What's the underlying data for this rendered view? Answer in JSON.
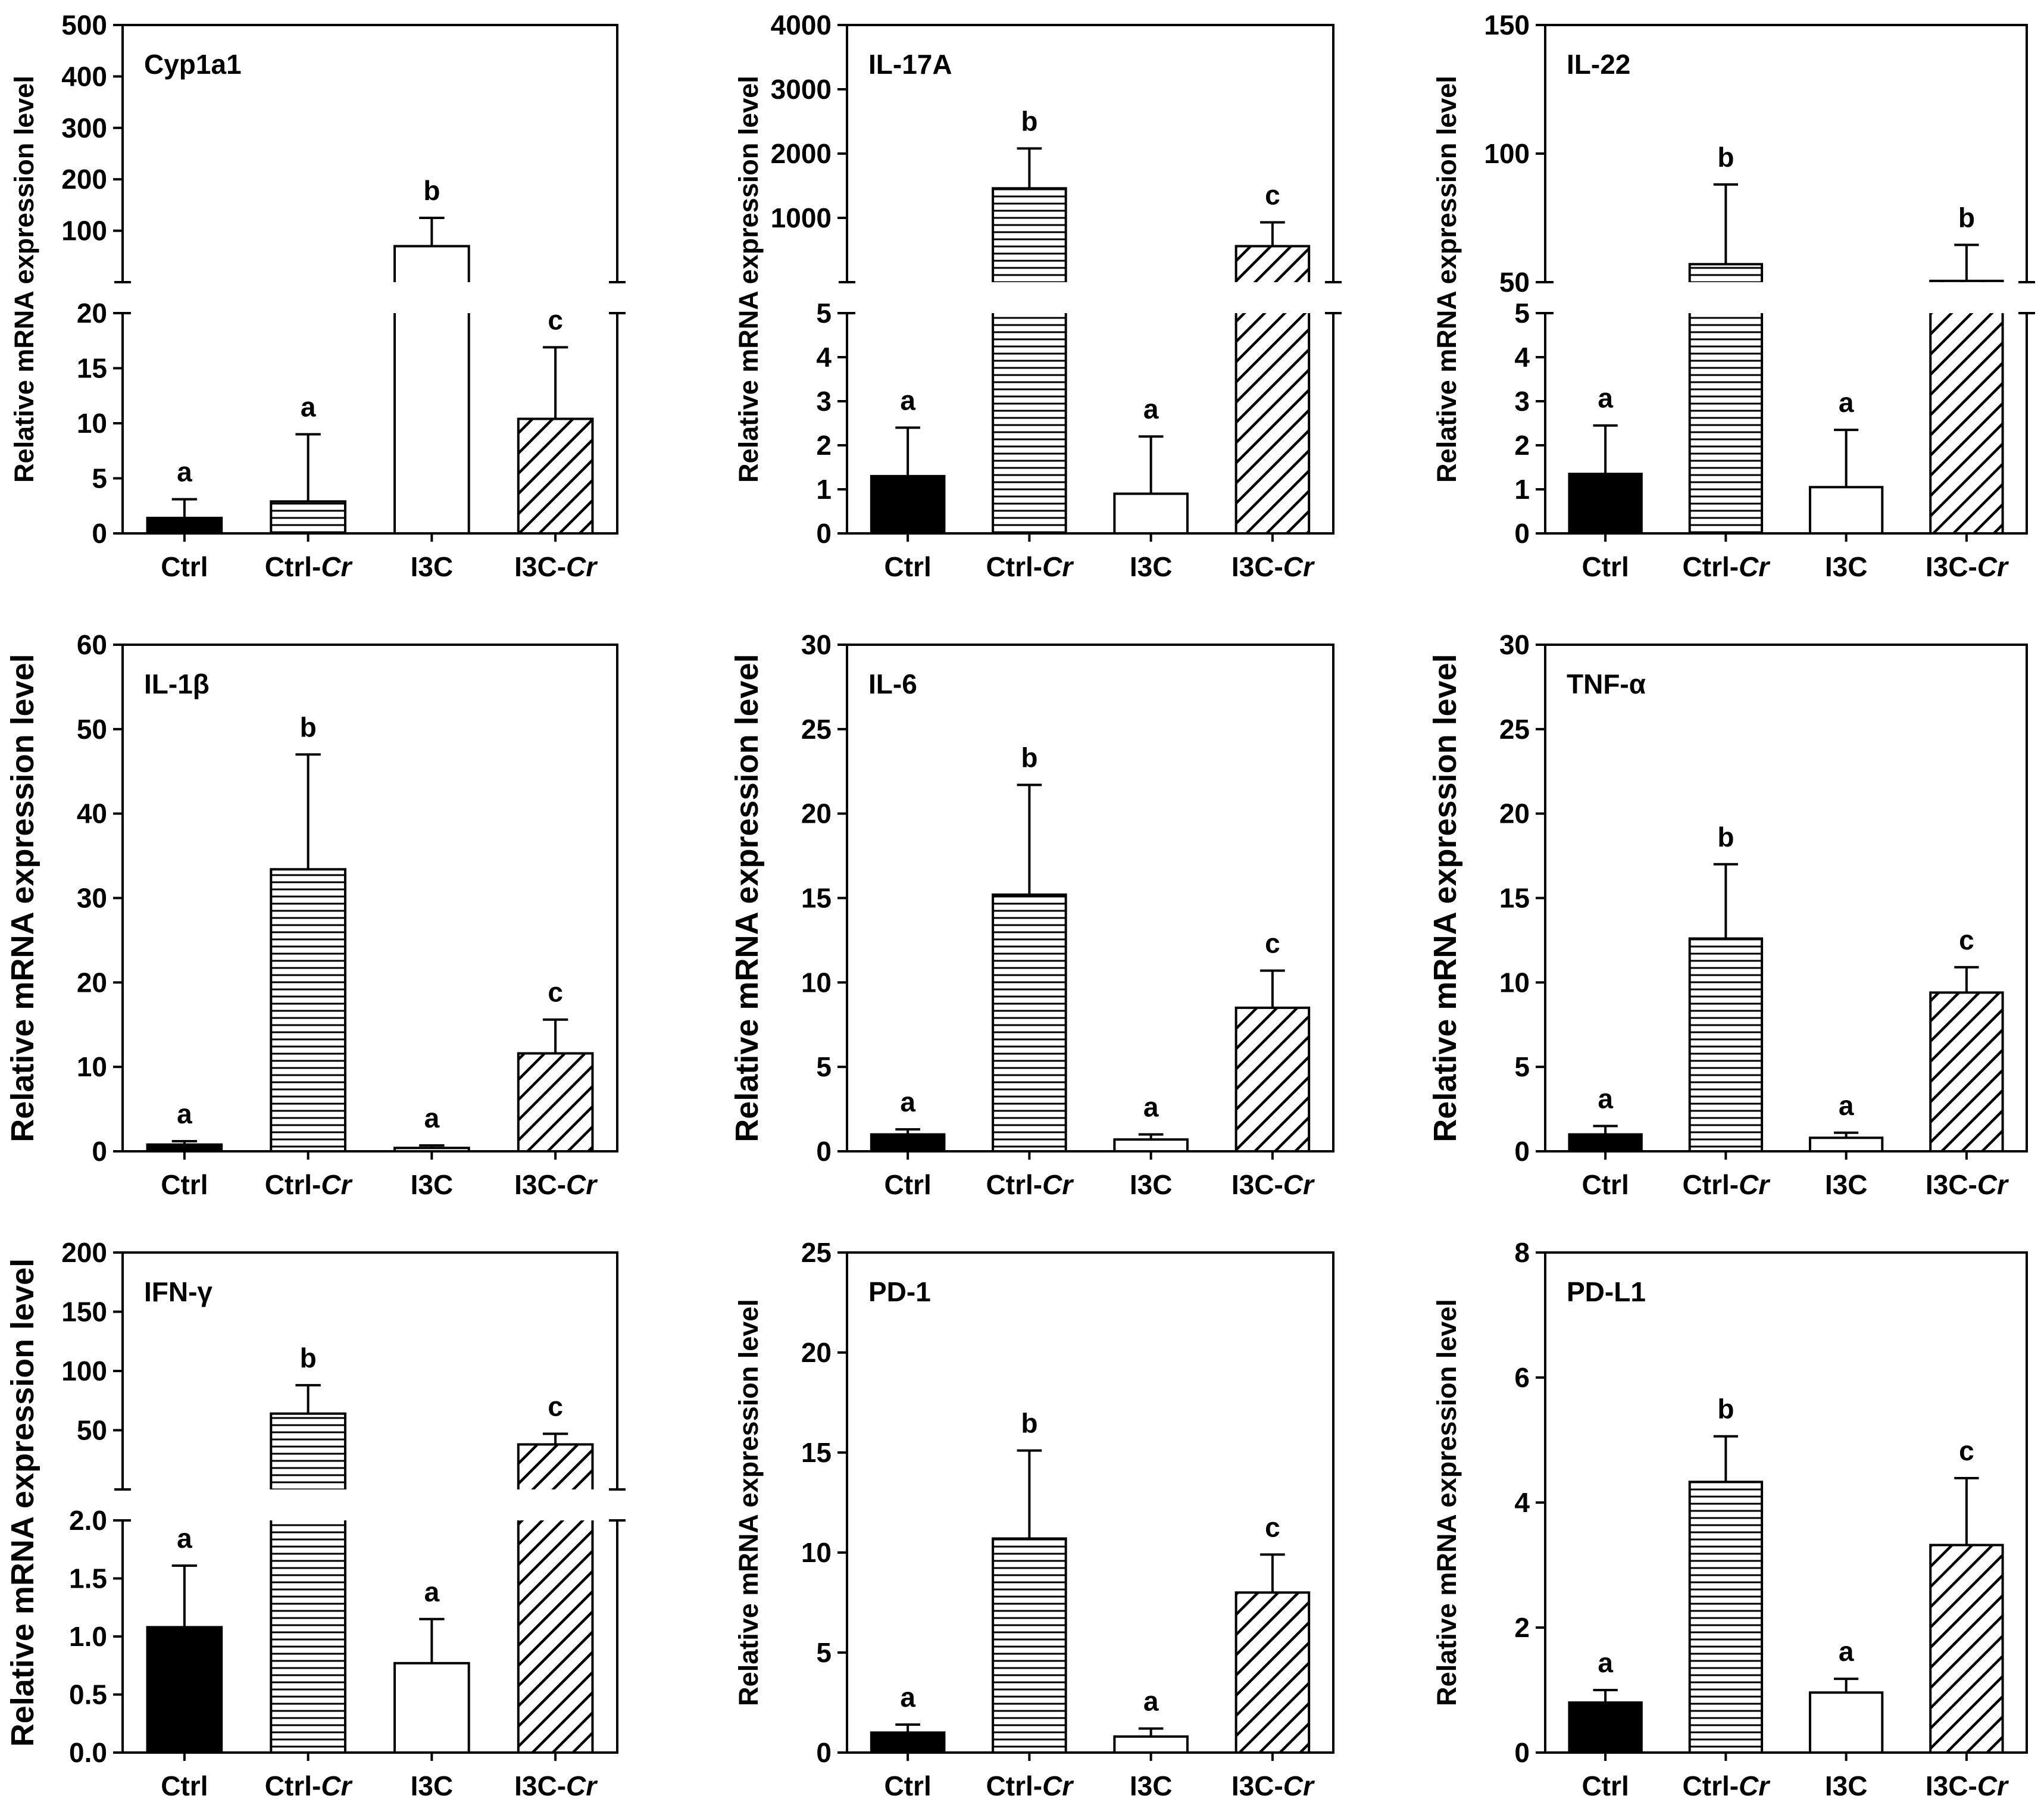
{
  "figure": {
    "ylabel": "Relative mRNA expression level",
    "categories": [
      "Ctrl",
      "Ctrl-",
      "I3C",
      "I3C-"
    ],
    "category_suffix": [
      "",
      "Cr",
      "",
      "Cr"
    ],
    "fills": [
      "solid",
      "horizontal-lines",
      "empty",
      "diagonal-hatch"
    ],
    "colors": {
      "bar_fill": "#000000",
      "stroke": "#000000",
      "background": "#ffffff"
    }
  },
  "chart_data": [
    {
      "type": "bar",
      "title": "Cyp1a1",
      "xlabel": "",
      "ylabel": "Relative mRNA expression level",
      "categories": [
        "Ctrl",
        "Ctrl-Cr",
        "I3C",
        "I3C-Cr"
      ],
      "broken_axis": true,
      "lower": {
        "ylim": [
          0,
          20
        ],
        "ticks": [
          "0",
          "5",
          "10",
          "15",
          "20"
        ]
      },
      "upper": {
        "ylim": [
          0,
          500
        ],
        "ticks": [
          "100",
          "200",
          "300",
          "400",
          "500"
        ]
      },
      "values": [
        1.4,
        2.9,
        70,
        10.4
      ],
      "errors": [
        1.7,
        6.1,
        55,
        6.5
      ],
      "letters": [
        "a",
        "a",
        "b",
        "c"
      ]
    },
    {
      "type": "bar",
      "title": "IL-17A",
      "xlabel": "",
      "ylabel": "Relative mRNA expression level",
      "categories": [
        "Ctrl",
        "Ctrl-Cr",
        "I3C",
        "I3C-Cr"
      ],
      "broken_axis": true,
      "lower": {
        "ylim": [
          0,
          5
        ],
        "ticks": [
          "0",
          "1",
          "2",
          "3",
          "4",
          "5"
        ]
      },
      "upper": {
        "ylim": [
          0,
          4000
        ],
        "ticks": [
          "1000",
          "2000",
          "3000",
          "4000"
        ]
      },
      "values": [
        1.3,
        1460,
        0.9,
        560
      ],
      "errors": [
        1.1,
        620,
        1.3,
        370
      ],
      "letters": [
        "a",
        "b",
        "a",
        "c"
      ]
    },
    {
      "type": "bar",
      "title": "IL-22",
      "xlabel": "",
      "ylabel": "Relative mRNA expression level",
      "categories": [
        "Ctrl",
        "Ctrl-Cr",
        "I3C",
        "I3C-Cr"
      ],
      "broken_axis": true,
      "lower": {
        "ylim": [
          0,
          5
        ],
        "ticks": [
          "0",
          "1",
          "2",
          "3",
          "4",
          "5"
        ]
      },
      "upper": {
        "ylim": [
          50,
          150
        ],
        "ticks": [
          "50",
          "100",
          "150"
        ]
      },
      "values": [
        1.35,
        57,
        1.05,
        50.5
      ],
      "errors": [
        1.1,
        31,
        1.3,
        14
      ],
      "letters": [
        "a",
        "b",
        "a",
        "b"
      ]
    },
    {
      "type": "bar",
      "title": "IL-1β",
      "xlabel": "",
      "ylabel": "Relative mRNA expression level",
      "categories": [
        "Ctrl",
        "Ctrl-Cr",
        "I3C",
        "I3C-Cr"
      ],
      "broken_axis": false,
      "ylim": [
        0,
        60
      ],
      "ticks": [
        "0",
        "10",
        "20",
        "30",
        "40",
        "50",
        "60"
      ],
      "values": [
        0.8,
        33.4,
        0.4,
        11.6
      ],
      "errors": [
        0.4,
        13.6,
        0.3,
        4.0
      ],
      "letters": [
        "a",
        "b",
        "a",
        "c"
      ]
    },
    {
      "type": "bar",
      "title": "IL-6",
      "xlabel": "",
      "ylabel": "Relative mRNA expression level",
      "categories": [
        "Ctrl",
        "Ctrl-Cr",
        "I3C",
        "I3C-Cr"
      ],
      "broken_axis": false,
      "ylim": [
        0,
        30
      ],
      "ticks": [
        "0",
        "5",
        "10",
        "15",
        "20",
        "25",
        "30"
      ],
      "values": [
        1.0,
        15.2,
        0.7,
        8.5
      ],
      "errors": [
        0.3,
        6.5,
        0.3,
        2.2
      ],
      "letters": [
        "a",
        "b",
        "a",
        "c"
      ]
    },
    {
      "type": "bar",
      "title": "TNF-α",
      "xlabel": "",
      "ylabel": "Relative mRNA expression level",
      "categories": [
        "Ctrl",
        "Ctrl-Cr",
        "I3C",
        "I3C-Cr"
      ],
      "broken_axis": false,
      "ylim": [
        0,
        30
      ],
      "ticks": [
        "0",
        "5",
        "10",
        "15",
        "20",
        "25",
        "30"
      ],
      "values": [
        1.0,
        12.6,
        0.8,
        9.4
      ],
      "errors": [
        0.5,
        4.4,
        0.3,
        1.5
      ],
      "letters": [
        "a",
        "b",
        "a",
        "c"
      ]
    },
    {
      "type": "bar",
      "title": "IFN-γ",
      "xlabel": "",
      "ylabel": "Relative mRNA expression level",
      "categories": [
        "Ctrl",
        "Ctrl-Cr",
        "I3C",
        "I3C-Cr"
      ],
      "broken_axis": true,
      "lower": {
        "ylim": [
          0,
          2
        ],
        "ticks": [
          "0.0",
          "0.5",
          "1.0",
          "1.5",
          "2.0"
        ]
      },
      "upper": {
        "ylim": [
          0,
          200
        ],
        "ticks": [
          "50",
          "100",
          "150",
          "200"
        ]
      },
      "values": [
        1.08,
        64,
        0.77,
        38
      ],
      "errors": [
        0.53,
        24,
        0.38,
        9
      ],
      "letters": [
        "a",
        "b",
        "a",
        "c"
      ]
    },
    {
      "type": "bar",
      "title": "PD-1",
      "xlabel": "",
      "ylabel": "Relative mRNA expression level",
      "categories": [
        "Ctrl",
        "Ctrl-Cr",
        "I3C",
        "I3C-Cr"
      ],
      "broken_axis": false,
      "ylim": [
        0,
        25
      ],
      "ticks": [
        "0",
        "5",
        "10",
        "15",
        "20",
        "25"
      ],
      "values": [
        1.0,
        10.7,
        0.8,
        8.0
      ],
      "errors": [
        0.4,
        4.4,
        0.4,
        1.9
      ],
      "letters": [
        "a",
        "b",
        "a",
        "c"
      ]
    },
    {
      "type": "bar",
      "title": "PD-L1",
      "xlabel": "",
      "ylabel": "Relative mRNA expression level",
      "categories": [
        "Ctrl",
        "Ctrl-Cr",
        "I3C",
        "I3C-Cr"
      ],
      "broken_axis": false,
      "ylim": [
        0,
        8
      ],
      "ticks": [
        "0",
        "2",
        "4",
        "6",
        "8"
      ],
      "values": [
        0.8,
        4.33,
        0.96,
        3.32
      ],
      "errors": [
        0.2,
        0.73,
        0.22,
        1.07
      ],
      "letters": [
        "a",
        "b",
        "a",
        "c"
      ]
    }
  ]
}
